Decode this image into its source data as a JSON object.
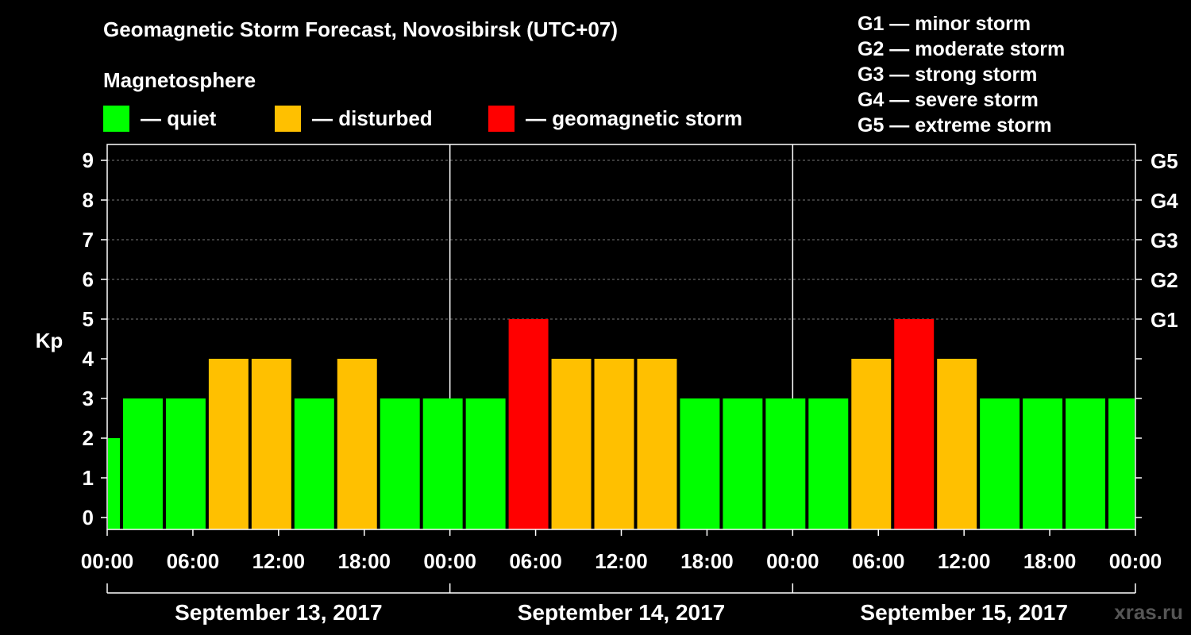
{
  "chart_data": {
    "type": "bar",
    "title": "Geomagnetic Storm Forecast, Novosibirsk (UTC+07)",
    "legend_title": "Magnetosphere",
    "legend": [
      {
        "label": "— quiet",
        "color": "#00ff00"
      },
      {
        "label": "— disturbed",
        "color": "#ffc000"
      },
      {
        "label": "— geomagnetic storm",
        "color": "#ff0000"
      }
    ],
    "g_levels": [
      "G1 — minor storm",
      "G2 — moderate storm",
      "G3 — strong storm",
      "G4 — severe storm",
      "G5 — extreme storm"
    ],
    "ylabel": "Kp",
    "ylim": [
      0,
      9
    ],
    "yticks": [
      "0",
      "1",
      "2",
      "3",
      "4",
      "5",
      "6",
      "7",
      "8",
      "9"
    ],
    "right_ticks": [
      {
        "kp": 5,
        "label": "G1"
      },
      {
        "kp": 6,
        "label": "G2"
      },
      {
        "kp": 7,
        "label": "G3"
      },
      {
        "kp": 8,
        "label": "G4"
      },
      {
        "kp": 9,
        "label": "G5"
      }
    ],
    "x_range_hours": [
      0,
      72
    ],
    "xtick_labels": [
      "00:00",
      "06:00",
      "12:00",
      "18:00",
      "00:00",
      "06:00",
      "12:00",
      "18:00",
      "00:00",
      "06:00",
      "12:00",
      "18:00",
      "00:00"
    ],
    "days": [
      "September 13, 2017",
      "September 14, 2017",
      "September 15, 2017"
    ],
    "bars": [
      {
        "start": 0,
        "end": 1,
        "kp": 2,
        "color": "#00ff00"
      },
      {
        "start": 1,
        "end": 4,
        "kp": 3,
        "color": "#00ff00"
      },
      {
        "start": 4,
        "end": 7,
        "kp": 3,
        "color": "#00ff00"
      },
      {
        "start": 7,
        "end": 10,
        "kp": 4,
        "color": "#ffc000"
      },
      {
        "start": 10,
        "end": 13,
        "kp": 4,
        "color": "#ffc000"
      },
      {
        "start": 13,
        "end": 16,
        "kp": 3,
        "color": "#00ff00"
      },
      {
        "start": 16,
        "end": 19,
        "kp": 4,
        "color": "#ffc000"
      },
      {
        "start": 19,
        "end": 22,
        "kp": 3,
        "color": "#00ff00"
      },
      {
        "start": 22,
        "end": 25,
        "kp": 3,
        "color": "#00ff00"
      },
      {
        "start": 25,
        "end": 28,
        "kp": 3,
        "color": "#00ff00"
      },
      {
        "start": 28,
        "end": 31,
        "kp": 5,
        "color": "#ff0000"
      },
      {
        "start": 31,
        "end": 34,
        "kp": 4,
        "color": "#ffc000"
      },
      {
        "start": 34,
        "end": 37,
        "kp": 4,
        "color": "#ffc000"
      },
      {
        "start": 37,
        "end": 40,
        "kp": 4,
        "color": "#ffc000"
      },
      {
        "start": 40,
        "end": 43,
        "kp": 3,
        "color": "#00ff00"
      },
      {
        "start": 43,
        "end": 46,
        "kp": 3,
        "color": "#00ff00"
      },
      {
        "start": 46,
        "end": 49,
        "kp": 3,
        "color": "#00ff00"
      },
      {
        "start": 49,
        "end": 52,
        "kp": 3,
        "color": "#00ff00"
      },
      {
        "start": 52,
        "end": 55,
        "kp": 4,
        "color": "#ffc000"
      },
      {
        "start": 55,
        "end": 58,
        "kp": 5,
        "color": "#ff0000"
      },
      {
        "start": 58,
        "end": 61,
        "kp": 4,
        "color": "#ffc000"
      },
      {
        "start": 61,
        "end": 64,
        "kp": 3,
        "color": "#00ff00"
      },
      {
        "start": 64,
        "end": 67,
        "kp": 3,
        "color": "#00ff00"
      },
      {
        "start": 67,
        "end": 70,
        "kp": 3,
        "color": "#00ff00"
      },
      {
        "start": 70,
        "end": 72,
        "kp": 3,
        "color": "#00ff00"
      }
    ],
    "grid": true
  },
  "watermark": "xras.ru"
}
